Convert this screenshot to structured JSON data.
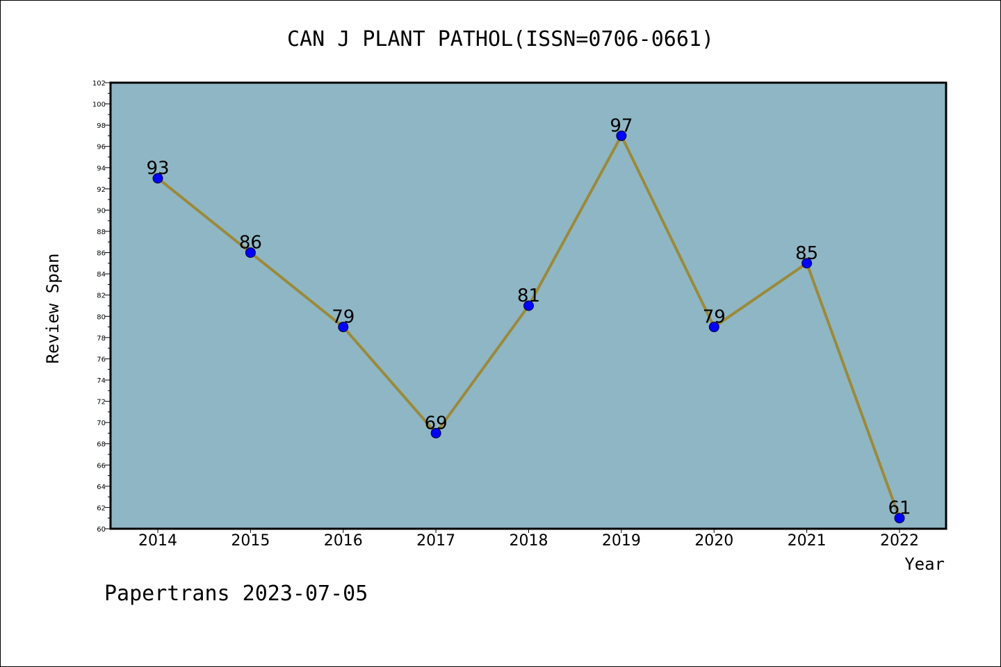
{
  "chart_data": {
    "type": "line",
    "title": "CAN J PLANT PATHOL(ISSN=0706-0661)",
    "xlabel": "Year",
    "ylabel": "Review Span",
    "categories": [
      "2014",
      "2015",
      "2016",
      "2017",
      "2018",
      "2019",
      "2020",
      "2021",
      "2022"
    ],
    "values": [
      93,
      86,
      79,
      69,
      81,
      97,
      79,
      85,
      61
    ],
    "data_labels": [
      "93",
      "86",
      "79",
      "69",
      "81",
      "97",
      "79",
      "85",
      "61"
    ],
    "ylim": [
      60,
      102
    ],
    "y_tick_step": 2,
    "grid": false,
    "legend": "none",
    "colors": {
      "plot_background": "#8fb6c4",
      "line": "#9a8a3a",
      "marker": "#0000ff"
    }
  },
  "footer": "Papertrans 2023-07-05"
}
